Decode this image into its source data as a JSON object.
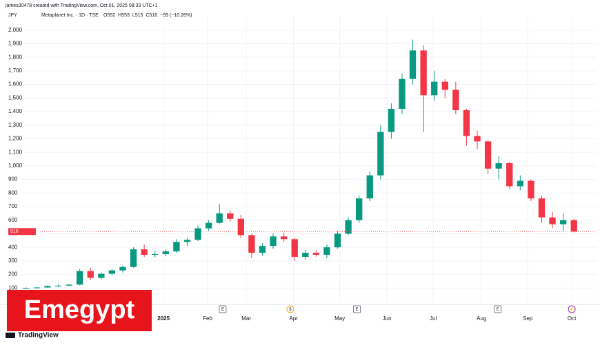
{
  "chart_data": {
    "type": "candlestick",
    "attribution": "james30478 created with TradingView.com, Oct 01, 2025 08:33 UTC+1",
    "currency": "JPY",
    "title": "Metaplanet Inc. · 1D · TSE",
    "ohlc_texts": [
      "O552",
      "H553",
      "L515",
      "C516",
      "−59 (−10.26%)"
    ],
    "last_price_label": "516",
    "watermark": "Emegypt",
    "logo": "TradingView",
    "up_color": "#089981",
    "down_color": "#f23645",
    "grid": true,
    "ylim": [
      0,
      2100
    ],
    "yticks": [
      100,
      200,
      300,
      400,
      500,
      600,
      700,
      800,
      900,
      {
        "value": 1000,
        "label": "1,000"
      },
      {
        "value": 1100,
        "label": "1,100"
      },
      {
        "value": 1200,
        "label": "1,200"
      },
      {
        "value": 1300,
        "label": "1,300"
      },
      {
        "value": 1400,
        "label": "1,400"
      },
      {
        "value": 1500,
        "label": "1,500"
      },
      {
        "value": 1600,
        "label": "1,600"
      },
      {
        "value": 1700,
        "label": "1,700"
      },
      {
        "value": 1800,
        "label": "1,800"
      },
      {
        "value": 1900,
        "label": "1,900"
      },
      {
        "value": 2000,
        "label": "2,000"
      }
    ],
    "xticks": [
      {
        "value": 12.8,
        "label": "2025"
      },
      {
        "value": 16.9,
        "label": "Feb"
      },
      {
        "value": 20.5,
        "label": "Mar"
      },
      {
        "value": 24.9,
        "label": "Apr"
      },
      {
        "value": 29.2,
        "label": "May"
      },
      {
        "value": 33.6,
        "label": "Jun"
      },
      {
        "value": 37.9,
        "label": "Jul"
      },
      {
        "value": 42.4,
        "label": "Aug"
      },
      {
        "value": 46.7,
        "label": "Sep"
      },
      {
        "value": 50.8,
        "label": "Oct"
      }
    ],
    "events": [
      {
        "value": 18.3,
        "label": "E"
      },
      {
        "value": 24.6,
        "label": "$"
      },
      {
        "value": 30.8,
        "label": "E"
      },
      {
        "value": 43.9,
        "label": "E"
      },
      {
        "value": 50.8,
        "label": "⚡"
      }
    ],
    "values": [
      [
        98,
        105,
        92,
        100
      ],
      [
        100,
        108,
        94,
        104
      ],
      [
        104,
        118,
        100,
        115
      ],
      [
        115,
        125,
        108,
        118
      ],
      [
        118,
        130,
        112,
        125
      ],
      [
        125,
        240,
        120,
        225
      ],
      [
        225,
        250,
        160,
        175
      ],
      [
        175,
        215,
        165,
        205
      ],
      [
        205,
        240,
        195,
        230
      ],
      [
        230,
        265,
        215,
        255
      ],
      [
        255,
        400,
        250,
        385
      ],
      [
        385,
        420,
        330,
        345
      ],
      [
        345,
        375,
        325,
        350
      ],
      [
        350,
        385,
        335,
        370
      ],
      [
        370,
        460,
        360,
        440
      ],
      [
        440,
        470,
        410,
        455
      ],
      [
        455,
        560,
        445,
        540
      ],
      [
        540,
        600,
        520,
        580
      ],
      [
        580,
        720,
        570,
        650
      ],
      [
        650,
        670,
        590,
        610
      ],
      [
        610,
        640,
        470,
        490
      ],
      [
        490,
        500,
        320,
        360
      ],
      [
        360,
        430,
        340,
        410
      ],
      [
        410,
        500,
        390,
        480
      ],
      [
        480,
        510,
        440,
        460
      ],
      [
        460,
        470,
        300,
        330
      ],
      [
        330,
        380,
        310,
        360
      ],
      [
        360,
        380,
        330,
        345
      ],
      [
        345,
        420,
        320,
        400
      ],
      [
        400,
        520,
        390,
        500
      ],
      [
        500,
        620,
        490,
        600
      ],
      [
        600,
        780,
        580,
        760
      ],
      [
        760,
        960,
        740,
        930
      ],
      [
        930,
        1300,
        900,
        1250
      ],
      [
        1250,
        1460,
        1200,
        1420
      ],
      [
        1420,
        1680,
        1380,
        1640
      ],
      [
        1640,
        1930,
        1600,
        1850
      ],
      [
        1850,
        1890,
        1250,
        1520
      ],
      [
        1520,
        1700,
        1480,
        1620
      ],
      [
        1620,
        1640,
        1500,
        1560
      ],
      [
        1560,
        1620,
        1380,
        1410
      ],
      [
        1410,
        1420,
        1150,
        1220
      ],
      [
        1220,
        1260,
        1120,
        1180
      ],
      [
        1180,
        1190,
        940,
        980
      ],
      [
        980,
        1070,
        900,
        1020
      ],
      [
        1020,
        1030,
        830,
        850
      ],
      [
        850,
        930,
        820,
        890
      ],
      [
        890,
        900,
        740,
        760
      ],
      [
        760,
        780,
        580,
        620
      ],
      [
        620,
        660,
        540,
        570
      ],
      [
        570,
        650,
        520,
        600
      ],
      [
        600,
        610,
        510,
        516
      ]
    ]
  }
}
